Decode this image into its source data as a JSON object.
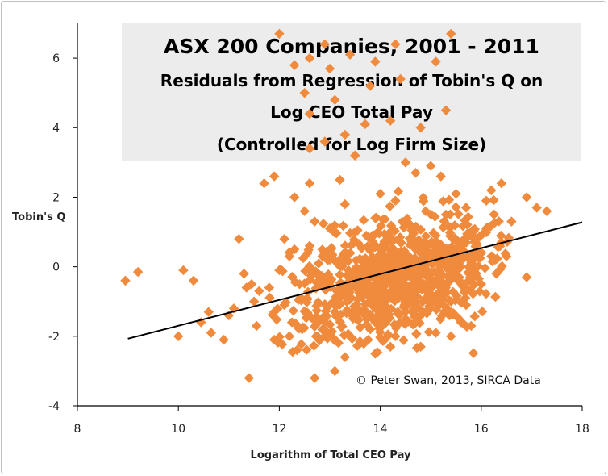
{
  "chart_data": {
    "type": "scatter",
    "title": "ASX 200 Companies, 2001 - 2011",
    "subtitle_lines": [
      "Residuals from Regression of Tobin's Q  on",
      "Log CEO Total Pay",
      "(Controlled for Log Firm Size)"
    ],
    "xlabel": "Logarithm of Total CEO Pay",
    "ylabel": "Tobin's Q",
    "credit": "© Peter Swan, 2013, SIRCA Data",
    "xlim": [
      8,
      18
    ],
    "ylim": [
      -4,
      7
    ],
    "x_ticks": [
      "8",
      "10",
      "12",
      "14",
      "16",
      "18"
    ],
    "y_ticks": [
      "-4",
      "-2",
      "0",
      "2",
      "4",
      "6"
    ],
    "grid": false,
    "marker": "diamond",
    "colors": {
      "points": "#f08a3c",
      "trendline": "#000000",
      "title_box": "#ececec"
    },
    "trendline": {
      "x": [
        9.0,
        18.0
      ],
      "y": [
        -2.07,
        1.28
      ]
    },
    "series": [
      {
        "points": [
          [
            8.95,
            -0.4
          ],
          [
            9.2,
            -0.15
          ],
          [
            10.1,
            -0.1
          ],
          [
            10.3,
            -0.4
          ],
          [
            10,
            -2.0
          ],
          [
            10.45,
            -1.6
          ],
          [
            10.6,
            -1.3
          ],
          [
            10.65,
            -1.9
          ],
          [
            10.9,
            -2.1
          ],
          [
            11.0,
            -1.4
          ],
          [
            11.1,
            -1.2
          ],
          [
            11.2,
            0.8
          ],
          [
            11.3,
            -0.2
          ],
          [
            11.35,
            -0.6
          ],
          [
            11.45,
            -0.5
          ],
          [
            11.5,
            -1.0
          ],
          [
            11.6,
            -0.7
          ],
          [
            11.8,
            -0.6
          ],
          [
            11.9,
            -2.1
          ],
          [
            11.4,
            -3.2
          ],
          [
            11.55,
            -1.7
          ],
          [
            12.0,
            -0.1
          ],
          [
            12.1,
            -1.1
          ],
          [
            12.2,
            0.3
          ],
          [
            12.25,
            -1.6
          ],
          [
            12.3,
            0.5
          ],
          [
            12.35,
            -2.4
          ],
          [
            12.45,
            -1.8
          ],
          [
            12.55,
            -0.9
          ],
          [
            12.7,
            -3.2
          ],
          [
            12.9,
            -2.0
          ],
          [
            13.1,
            -3.0
          ],
          [
            13.3,
            -2.6
          ],
          [
            13.7,
            -1.4
          ],
          [
            13.9,
            -2.5
          ],
          [
            14.3,
            -2.0
          ],
          [
            14.8,
            -2.3
          ],
          [
            15.1,
            -1.9
          ],
          [
            15.4,
            -2.0
          ],
          [
            15.6,
            -1.6
          ],
          [
            15.8,
            -1.7
          ],
          [
            16.5,
            0.3
          ],
          [
            16.9,
            -0.3
          ],
          [
            17.1,
            1.7
          ],
          [
            17.3,
            1.6
          ],
          [
            16.9,
            2.0
          ],
          [
            16.6,
            1.3
          ],
          [
            16.4,
            2.4
          ],
          [
            16.2,
            2.2
          ],
          [
            15.2,
            2.6
          ],
          [
            14.7,
            2.7
          ],
          [
            11.9,
            2.6
          ],
          [
            12.3,
            2.0
          ],
          [
            12.6,
            2.4
          ],
          [
            13.2,
            2.5
          ],
          [
            13.5,
            3.2
          ],
          [
            14.5,
            3.0
          ],
          [
            15.0,
            2.9
          ],
          [
            12.9,
            3.6
          ],
          [
            13.3,
            3.8
          ],
          [
            13.7,
            4.1
          ],
          [
            14.2,
            4.2
          ],
          [
            13.1,
            4.8
          ],
          [
            14.8,
            4.0
          ],
          [
            15.3,
            4.5
          ],
          [
            12.5,
            5.0
          ],
          [
            13.8,
            5.2
          ],
          [
            14.4,
            5.4
          ],
          [
            13.0,
            5.7
          ],
          [
            12.6,
            6.0
          ],
          [
            13.4,
            6.1
          ],
          [
            14.3,
            6.4
          ],
          [
            12.0,
            6.7
          ],
          [
            12.9,
            6.4
          ],
          [
            15.4,
            6.7
          ],
          [
            15.1,
            5.9
          ],
          [
            13.9,
            5.9
          ],
          [
            12.3,
            5.8
          ],
          [
            12.6,
            3.4
          ],
          [
            12.6,
            4.4
          ],
          [
            11.7,
            2.4
          ],
          [
            13.1,
            -1.3
          ],
          [
            13.4,
            -0.6
          ],
          [
            13.7,
            0.1
          ],
          [
            14.0,
            0.5
          ],
          [
            14.2,
            -0.4
          ],
          [
            14.4,
            0.7
          ],
          [
            14.6,
            1.2
          ],
          [
            14.9,
            0.2
          ],
          [
            15.1,
            0.9
          ],
          [
            15.3,
            1.5
          ],
          [
            15.5,
            0.4
          ],
          [
            15.7,
            1.7
          ],
          [
            15.9,
            0.6
          ],
          [
            16.1,
            1.1
          ],
          [
            16.3,
            -0.2
          ],
          [
            12.8,
            -0.3
          ],
          [
            13.0,
            0.2
          ],
          [
            13.2,
            -0.9
          ],
          [
            13.5,
            1.0
          ],
          [
            13.8,
            -1.8
          ],
          [
            14.1,
            -1.0
          ],
          [
            14.5,
            -1.5
          ],
          [
            14.7,
            -0.7
          ],
          [
            15.0,
            -1.2
          ],
          [
            15.2,
            -0.3
          ],
          [
            15.4,
            -1.0
          ],
          [
            15.6,
            0.0
          ],
          [
            15.8,
            0.9
          ],
          [
            16.0,
            -0.5
          ],
          [
            16.2,
            0.3
          ],
          [
            12.4,
            -0.5
          ],
          [
            12.7,
            1.3
          ],
          [
            12.9,
            -1.5
          ],
          [
            13.3,
            1.8
          ],
          [
            13.6,
            -0.3
          ],
          [
            13.9,
            1.4
          ],
          [
            14.3,
            1.9
          ],
          [
            14.6,
            -0.2
          ],
          [
            14.9,
            1.6
          ],
          [
            15.3,
            -0.6
          ],
          [
            15.7,
            -1.1
          ],
          [
            16.1,
            1.9
          ],
          [
            12.1,
            0.8
          ],
          [
            12.5,
            1.6
          ],
          [
            13.0,
            1.1
          ],
          [
            14.0,
            2.1
          ],
          [
            14.8,
            -1.4
          ],
          [
            15.5,
            2.1
          ],
          [
            13.6,
            -2.2
          ],
          [
            14.2,
            -2.3
          ],
          [
            12.2,
            -2.0
          ],
          [
            11.9,
            -1.3
          ],
          [
            12.6,
            0.6
          ],
          [
            15.9,
            -0.2
          ],
          [
            16.4,
            0.7
          ]
        ]
      }
    ]
  }
}
